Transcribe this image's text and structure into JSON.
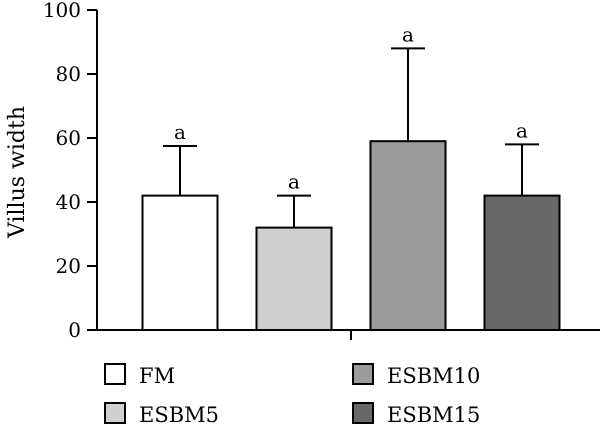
{
  "chart_data": {
    "type": "bar",
    "ylabel": "Villus width",
    "xlabel": "",
    "ylim": [
      0,
      100
    ],
    "yticks": [
      0,
      20,
      40,
      60,
      80,
      100
    ],
    "grid": false,
    "legend_position": "bottom",
    "categories": [
      "FM",
      "ESBM5",
      "ESBM10",
      "ESBM15"
    ],
    "values": [
      42,
      32,
      59,
      42
    ],
    "error": [
      15.5,
      10,
      29,
      16
    ],
    "significance": [
      "a",
      "a",
      "a",
      "a"
    ],
    "colors": [
      "#ffffff",
      "#cfcfcf",
      "#9b9b9b",
      "#686868"
    ]
  }
}
